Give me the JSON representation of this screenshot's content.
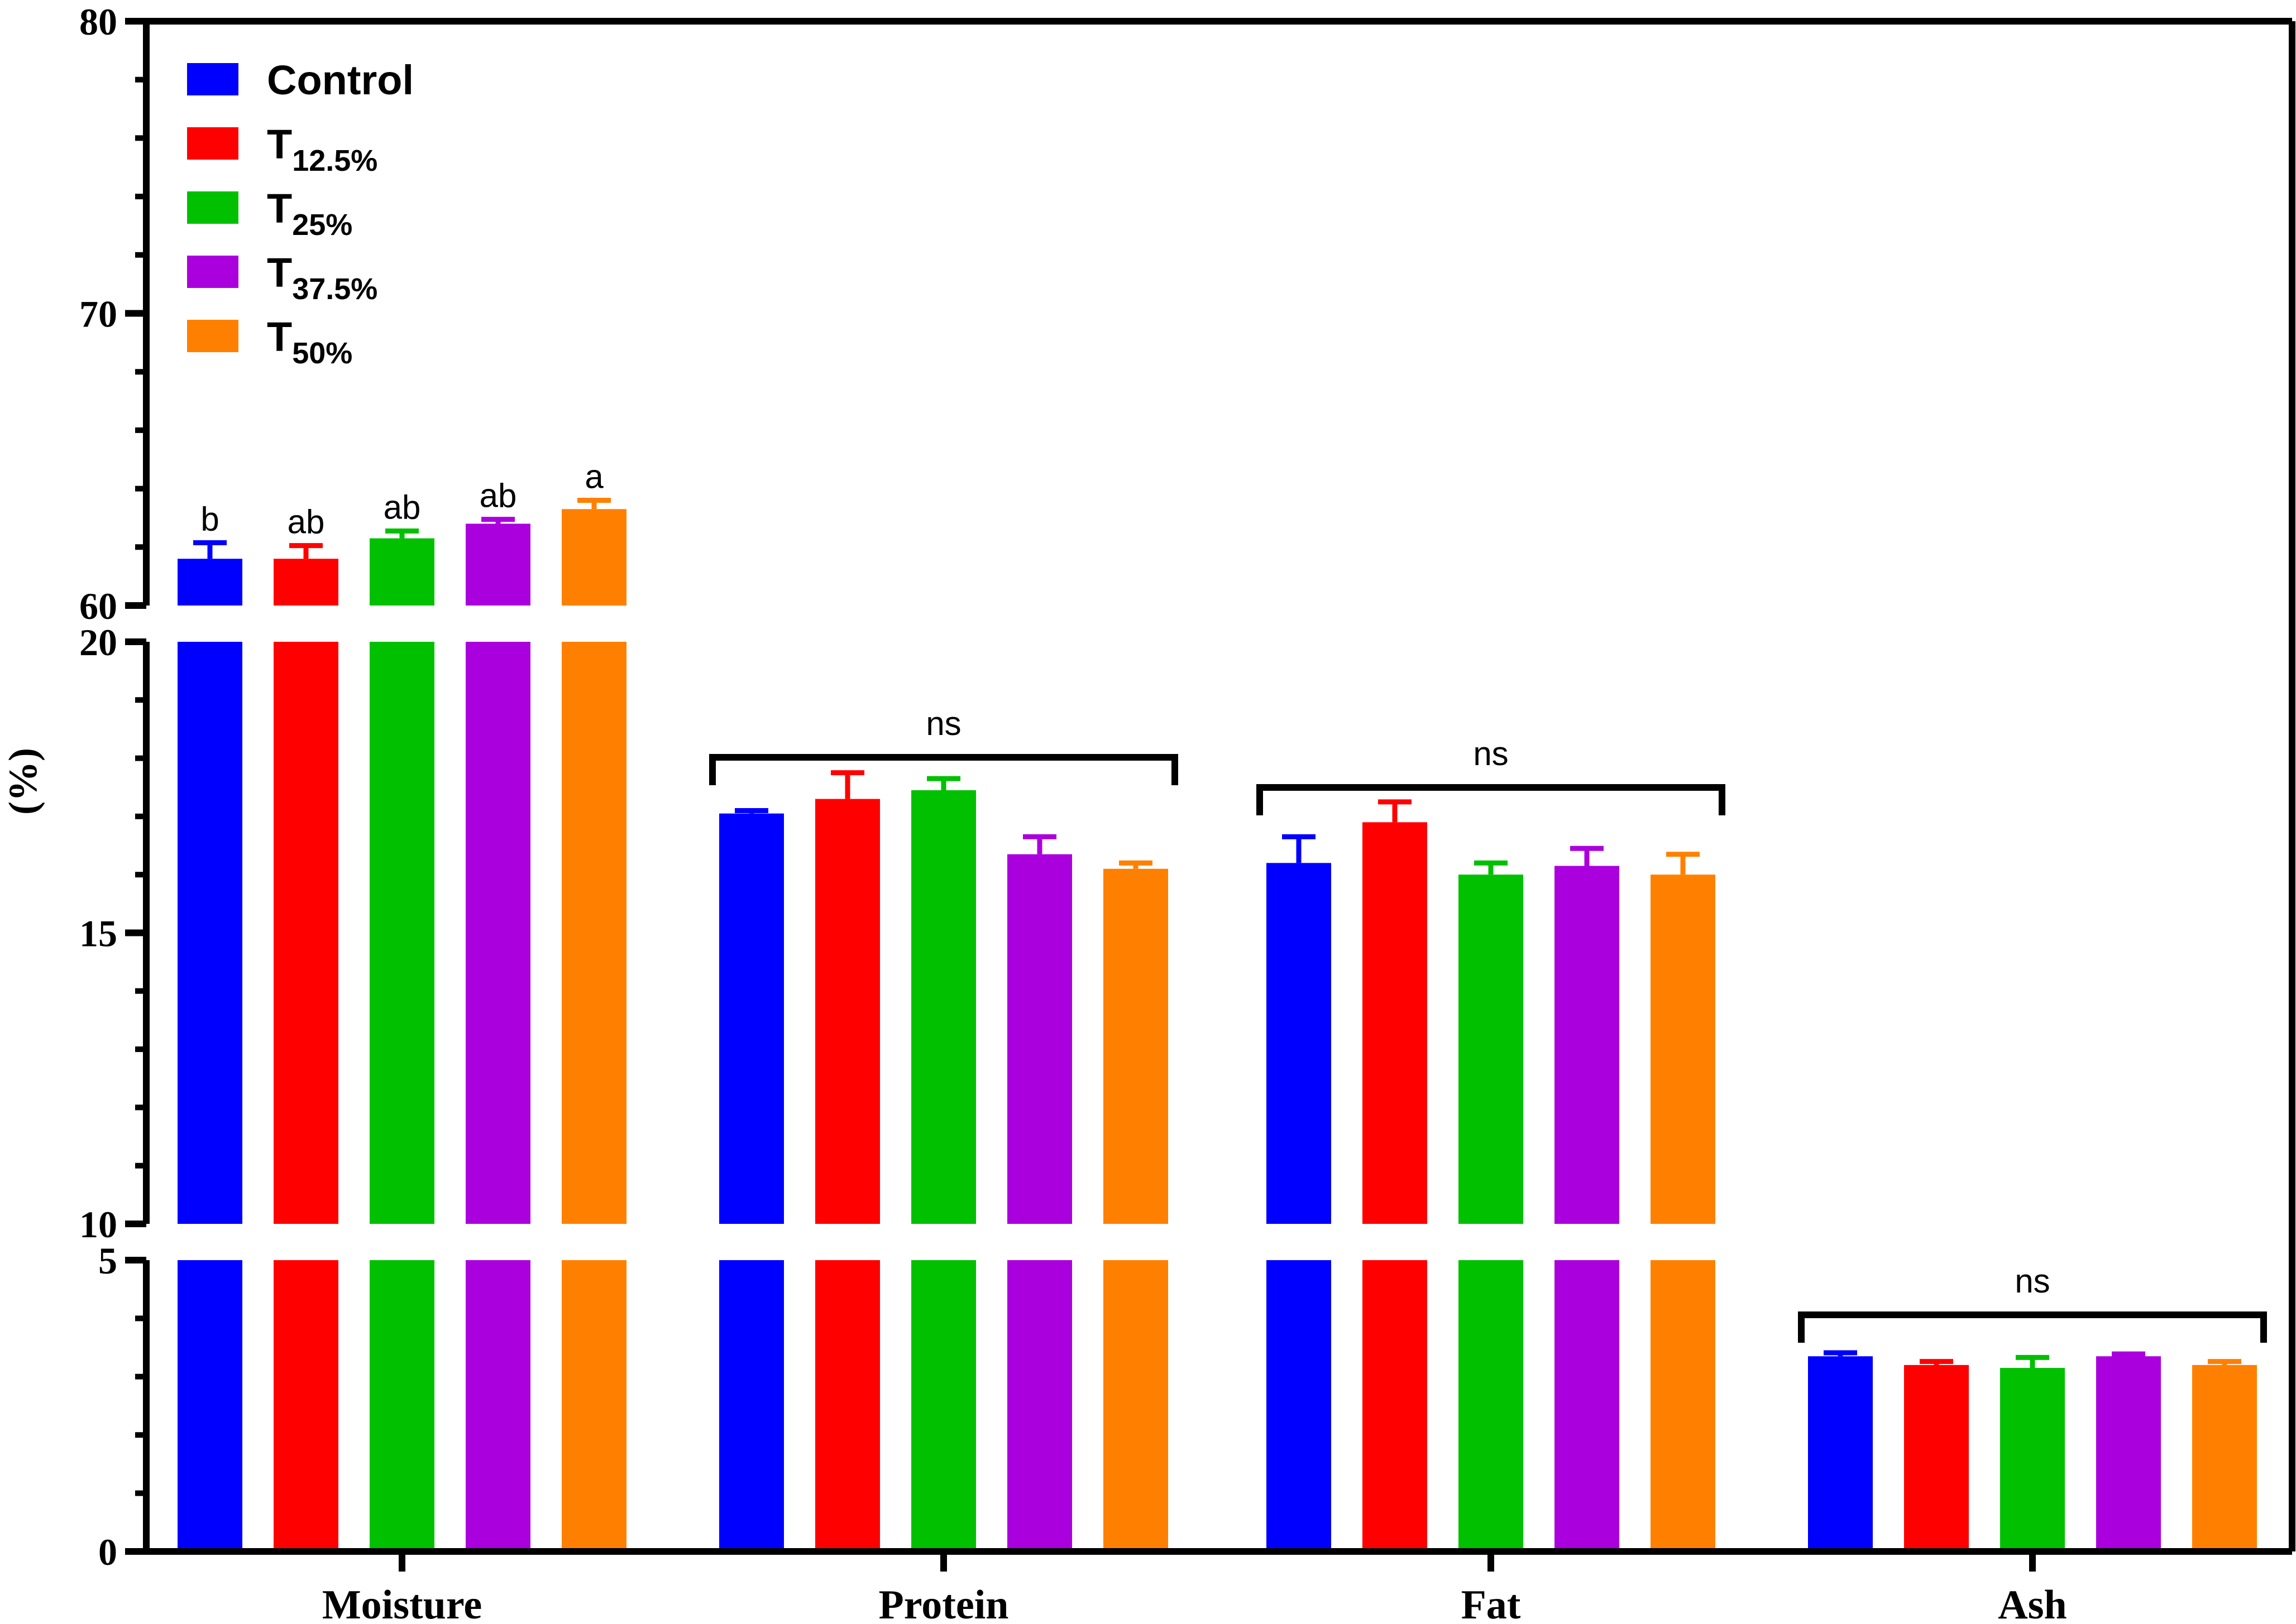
{
  "chart_data": {
    "type": "bar",
    "title": "",
    "xlabel": "",
    "ylabel": "(%)",
    "categories": [
      "Moisture",
      "Protein",
      "Fat",
      "Ash"
    ],
    "y_axis_segments": [
      {
        "range": [
          0,
          5
        ],
        "major_ticks": [
          0,
          5
        ],
        "tick_labels": [
          "0",
          "5"
        ]
      },
      {
        "range": [
          10,
          20
        ],
        "major_ticks": [
          10,
          15,
          20
        ],
        "tick_labels": [
          "10",
          "15",
          "20"
        ]
      },
      {
        "range": [
          60,
          80
        ],
        "major_ticks": [
          60,
          70,
          80
        ],
        "tick_labels": [
          "60",
          "70",
          "80"
        ]
      }
    ],
    "legend_position": "top-left",
    "series": [
      {
        "name": "Control",
        "subscript": "",
        "color": "#0000ff",
        "values": [
          61.6,
          17.05,
          16.2,
          3.35
        ],
        "errors": [
          0.55,
          0.05,
          0.45,
          0.06
        ]
      },
      {
        "name": "T",
        "subscript": "12.5%",
        "color": "#ff0000",
        "values": [
          61.6,
          17.3,
          16.9,
          3.2
        ],
        "errors": [
          0.45,
          0.45,
          0.35,
          0.06
        ]
      },
      {
        "name": "T",
        "subscript": "25%",
        "color": "#00c000",
        "values": [
          62.3,
          17.45,
          16.0,
          3.15
        ],
        "errors": [
          0.25,
          0.2,
          0.2,
          0.18
        ]
      },
      {
        "name": "T",
        "subscript": "37.5%",
        "color": "#aa00dd",
        "values": [
          62.8,
          16.35,
          16.15,
          3.35
        ],
        "errors": [
          0.15,
          0.3,
          0.3,
          0.04
        ]
      },
      {
        "name": "T",
        "subscript": "50%",
        "color": "#ff8000",
        "values": [
          63.3,
          16.1,
          16.0,
          3.2
        ],
        "errors": [
          0.3,
          0.1,
          0.35,
          0.06
        ]
      }
    ],
    "significance_letters": {
      "Moisture": [
        "b",
        "ab",
        "ab",
        "ab",
        "a"
      ]
    },
    "group_brackets": [
      {
        "category": "Protein",
        "label": "ns"
      },
      {
        "category": "Fat",
        "label": "ns"
      },
      {
        "category": "Ash",
        "label": "ns"
      }
    ]
  }
}
